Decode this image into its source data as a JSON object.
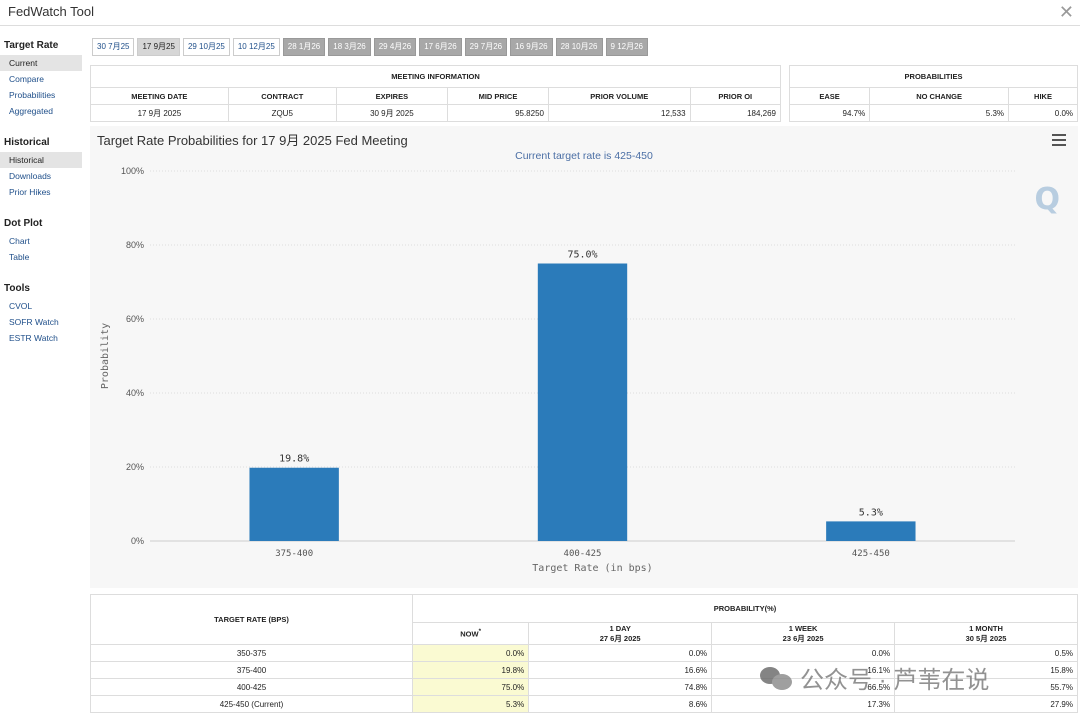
{
  "app": {
    "title": "FedWatch Tool"
  },
  "sidebar": {
    "sections": [
      {
        "heading": "Target Rate",
        "items": [
          "Current",
          "Compare",
          "Probabilities",
          "Aggregated"
        ],
        "active": 0
      },
      {
        "heading": "Historical",
        "items": [
          "Historical",
          "Downloads",
          "Prior Hikes"
        ],
        "active": 0
      },
      {
        "heading": "Dot Plot",
        "items": [
          "Chart",
          "Table"
        ],
        "active": -1
      },
      {
        "heading": "Tools",
        "items": [
          "CVOL",
          "SOFR Watch",
          "ESTR Watch"
        ],
        "active": -1
      }
    ]
  },
  "tabs": [
    {
      "label": "30 7月25",
      "state": "normal"
    },
    {
      "label": "17 9月25",
      "state": "selected"
    },
    {
      "label": "29 10月25",
      "state": "normal"
    },
    {
      "label": "10 12月25",
      "state": "normal"
    },
    {
      "label": "28 1月26",
      "state": "future"
    },
    {
      "label": "18 3月26",
      "state": "future"
    },
    {
      "label": "29 4月26",
      "state": "future"
    },
    {
      "label": "17 6月26",
      "state": "future"
    },
    {
      "label": "29 7月26",
      "state": "future"
    },
    {
      "label": "16 9月26",
      "state": "future"
    },
    {
      "label": "28 10月26",
      "state": "future"
    },
    {
      "label": "9 12月26",
      "state": "future"
    }
  ],
  "meeting_info": {
    "heading": "MEETING INFORMATION",
    "columns": [
      "MEETING DATE",
      "CONTRACT",
      "EXPIRES",
      "MID PRICE",
      "PRIOR VOLUME",
      "PRIOR OI"
    ],
    "row": [
      "17 9月 2025",
      "ZQU5",
      "30 9月 2025",
      "95.8250",
      "12,533",
      "184,269"
    ]
  },
  "probabilities": {
    "heading": "PROBABILITIES",
    "columns": [
      "EASE",
      "NO CHANGE",
      "HIKE"
    ],
    "row": [
      "94.7%",
      "5.3%",
      "0.0%"
    ]
  },
  "chart": {
    "title": "Target Rate Probabilities for 17 9月 2025 Fed Meeting",
    "subtitle": "Current target rate is 425-450",
    "logo": "Q"
  },
  "chart_data": {
    "type": "bar",
    "title": "Target Rate Probabilities for 17 9月 2025 Fed Meeting",
    "subtitle": "Current target rate is 425-450",
    "categories": [
      "375-400",
      "400-425",
      "425-450"
    ],
    "values": [
      19.8,
      75.0,
      5.3
    ],
    "data_labels": [
      "19.8%",
      "75.0%",
      "5.3%"
    ],
    "xlabel": "Target Rate (in bps)",
    "ylabel": "Probability",
    "ylim": [
      0,
      100
    ],
    "yticks": [
      "0%",
      "20%",
      "40%",
      "60%",
      "80%",
      "100%"
    ],
    "grid": true,
    "bar_color": "#2b7bba"
  },
  "bottom_table": {
    "col_target": "TARGET RATE (BPS)",
    "group": "PROBABILITY(%)",
    "sub_columns": [
      {
        "line1": "NOW",
        "line2": ""
      },
      {
        "line1": "1 DAY",
        "line2": "27 6月 2025"
      },
      {
        "line1": "1 WEEK",
        "line2": "23 6月 2025"
      },
      {
        "line1": "1 MONTH",
        "line2": "30 5月 2025"
      }
    ],
    "now_marker": "*",
    "rows": [
      {
        "rate": "350-375",
        "values": [
          "0.0%",
          "0.0%",
          "0.0%",
          "0.5%"
        ]
      },
      {
        "rate": "375-400",
        "values": [
          "19.8%",
          "16.6%",
          "16.1%",
          "15.8%"
        ]
      },
      {
        "rate": "400-425",
        "values": [
          "75.0%",
          "74.8%",
          "66.5%",
          "55.7%"
        ]
      },
      {
        "rate": "425-450 (Current)",
        "values": [
          "5.3%",
          "8.6%",
          "17.3%",
          "27.9%"
        ]
      }
    ]
  },
  "watermark": {
    "text": "公众号 · 芦苇在说"
  }
}
